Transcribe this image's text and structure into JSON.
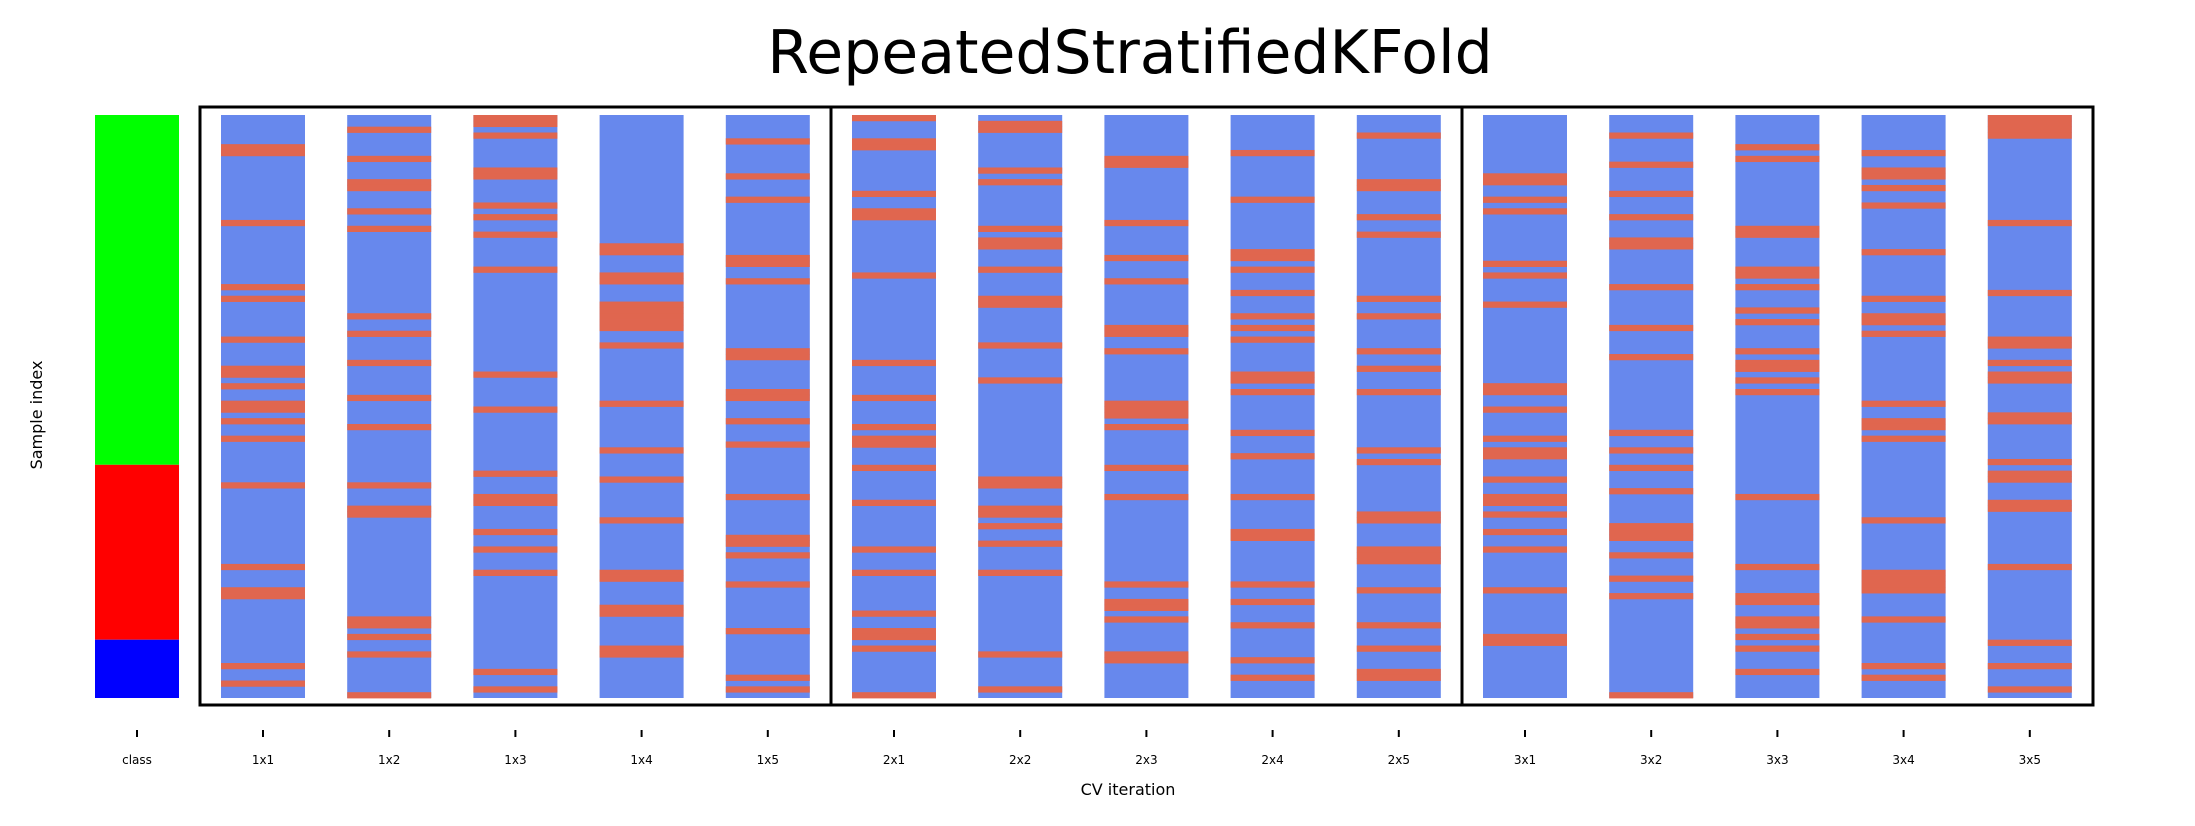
{
  "chart_data": {
    "type": "heatmap",
    "title": "RepeatedStratifiedKFold",
    "xlabel": "CV iteration",
    "ylabel": "Sample index",
    "n_samples": 100,
    "colors": {
      "train": "#6788ed",
      "test": "#e0664f",
      "class_0": "#00ff00",
      "class_1": "#ff0000",
      "class_2": "#0000ff",
      "frame": "#000000"
    },
    "class_column": {
      "label": "class",
      "segments": [
        {
          "class": 0,
          "start": 0,
          "end": 60
        },
        {
          "class": 1,
          "start": 60,
          "end": 90
        },
        {
          "class": 2,
          "start": 90,
          "end": 100
        }
      ]
    },
    "repeat_groups": [
      "1",
      "2",
      "3"
    ],
    "iterations": [
      {
        "label": "1x1",
        "test": [
          5,
          6,
          18,
          29,
          31,
          38,
          43,
          44,
          46,
          49,
          50,
          52,
          55,
          63,
          77,
          81,
          82,
          94,
          97
        ]
      },
      {
        "label": "1x2",
        "test": [
          2,
          7,
          11,
          12,
          16,
          19,
          34,
          37,
          42,
          48,
          53,
          63,
          67,
          68,
          86,
          87,
          89,
          92,
          99
        ]
      },
      {
        "label": "1x3",
        "test": [
          0,
          1,
          3,
          9,
          10,
          15,
          17,
          20,
          26,
          44,
          50,
          61,
          65,
          66,
          71,
          74,
          78,
          95,
          98
        ]
      },
      {
        "label": "1x4",
        "test": [
          22,
          23,
          27,
          28,
          32,
          33,
          34,
          35,
          36,
          39,
          49,
          57,
          62,
          69,
          78,
          79,
          84,
          85,
          91,
          92
        ]
      },
      {
        "label": "1x5",
        "test": [
          4,
          10,
          14,
          24,
          25,
          28,
          40,
          41,
          47,
          48,
          52,
          56,
          65,
          72,
          73,
          75,
          80,
          88,
          96,
          98
        ]
      },
      {
        "label": "2x1",
        "test": [
          0,
          4,
          5,
          13,
          16,
          17,
          27,
          42,
          48,
          53,
          55,
          56,
          60,
          66,
          74,
          78,
          85,
          88,
          89,
          91,
          99
        ]
      },
      {
        "label": "2x2",
        "test": [
          1,
          2,
          9,
          11,
          19,
          21,
          22,
          26,
          31,
          32,
          39,
          45,
          62,
          63,
          67,
          68,
          70,
          73,
          78,
          92,
          98
        ]
      },
      {
        "label": "2x3",
        "test": [
          7,
          8,
          18,
          24,
          28,
          36,
          37,
          40,
          49,
          50,
          51,
          53,
          60,
          65,
          80,
          83,
          84,
          86,
          92,
          93
        ]
      },
      {
        "label": "2x4",
        "test": [
          6,
          14,
          23,
          24,
          26,
          30,
          34,
          36,
          38,
          44,
          45,
          47,
          54,
          58,
          65,
          71,
          72,
          80,
          83,
          87,
          93,
          96
        ]
      },
      {
        "label": "2x5",
        "test": [
          3,
          11,
          12,
          17,
          20,
          31,
          34,
          40,
          43,
          47,
          57,
          59,
          68,
          69,
          74,
          75,
          76,
          81,
          87,
          91,
          95,
          96
        ]
      },
      {
        "label": "3x1",
        "test": [
          10,
          11,
          14,
          16,
          25,
          27,
          32,
          46,
          47,
          50,
          55,
          57,
          58,
          62,
          65,
          66,
          68,
          71,
          74,
          81,
          89,
          90
        ]
      },
      {
        "label": "3x2",
        "test": [
          3,
          8,
          13,
          17,
          21,
          22,
          29,
          36,
          41,
          54,
          57,
          60,
          64,
          70,
          71,
          72,
          75,
          79,
          82,
          99
        ]
      },
      {
        "label": "3x3",
        "test": [
          5,
          7,
          19,
          20,
          26,
          27,
          29,
          33,
          35,
          40,
          42,
          43,
          45,
          47,
          65,
          77,
          82,
          83,
          86,
          87,
          89,
          91,
          95
        ]
      },
      {
        "label": "3x4",
        "test": [
          6,
          9,
          10,
          12,
          15,
          23,
          31,
          34,
          35,
          37,
          49,
          52,
          53,
          55,
          69,
          78,
          79,
          80,
          81,
          86,
          94,
          96
        ]
      },
      {
        "label": "3x5",
        "test": [
          0,
          1,
          2,
          3,
          18,
          30,
          38,
          39,
          42,
          44,
          45,
          51,
          52,
          59,
          61,
          62,
          66,
          67,
          77,
          90,
          94,
          98
        ]
      }
    ]
  }
}
